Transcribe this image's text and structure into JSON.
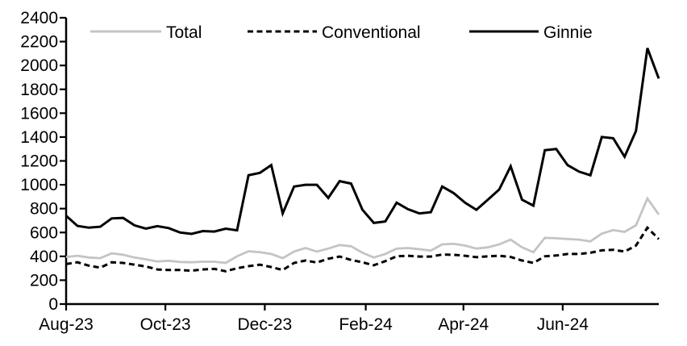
{
  "chart_data": {
    "type": "line",
    "title": "",
    "xlabel": "",
    "ylabel": "",
    "x_unit": "week",
    "n_points": 53,
    "ylim": [
      0,
      2400
    ],
    "y_ticks": [
      0,
      200,
      400,
      600,
      800,
      1000,
      1200,
      1400,
      1600,
      1800,
      2000,
      2200,
      2400
    ],
    "x_tick_labels": [
      "Aug-23",
      "Oct-23",
      "Dec-23",
      "Feb-24",
      "Apr-24",
      "Jun-24"
    ],
    "x_tick_week_positions": [
      0,
      8.71,
      17.43,
      26.29,
      34.86,
      43.57
    ],
    "grid": false,
    "legend_position": "top",
    "colors": {
      "axis": "#000000",
      "gray_series": "#c4c4c4",
      "black_series": "#000000",
      "background": "#ffffff"
    },
    "series": [
      {
        "name": "Total",
        "color": "#c4c4c4",
        "dash": "solid",
        "values": [
          395,
          405,
          390,
          385,
          425,
          413,
          390,
          375,
          357,
          363,
          353,
          350,
          355,
          355,
          345,
          400,
          443,
          435,
          420,
          385,
          440,
          470,
          440,
          465,
          495,
          485,
          430,
          390,
          420,
          465,
          470,
          460,
          448,
          500,
          505,
          490,
          465,
          475,
          500,
          540,
          475,
          435,
          555,
          552,
          545,
          540,
          525,
          590,
          620,
          605,
          660,
          885,
          750
        ]
      },
      {
        "name": "Conventional",
        "color": "#000000",
        "dash": "dashed",
        "values": [
          335,
          350,
          322,
          305,
          350,
          345,
          330,
          315,
          290,
          285,
          285,
          280,
          290,
          295,
          275,
          300,
          318,
          330,
          310,
          285,
          345,
          365,
          348,
          380,
          398,
          370,
          350,
          325,
          360,
          400,
          405,
          398,
          398,
          415,
          413,
          405,
          393,
          400,
          405,
          395,
          365,
          345,
          400,
          407,
          420,
          420,
          430,
          450,
          455,
          440,
          490,
          640,
          545
        ]
      },
      {
        "name": "Ginnie",
        "color": "#000000",
        "dash": "solid",
        "values": [
          740,
          655,
          640,
          648,
          718,
          722,
          660,
          632,
          653,
          637,
          600,
          588,
          612,
          608,
          632,
          618,
          1080,
          1100,
          1165,
          760,
          985,
          1000,
          1000,
          890,
          1030,
          1010,
          790,
          680,
          692,
          850,
          795,
          760,
          770,
          985,
          930,
          850,
          790,
          875,
          960,
          1155,
          875,
          825,
          1290,
          1300,
          1165,
          1110,
          1080,
          1400,
          1390,
          1235,
          1450,
          2145,
          1890
        ]
      }
    ]
  }
}
